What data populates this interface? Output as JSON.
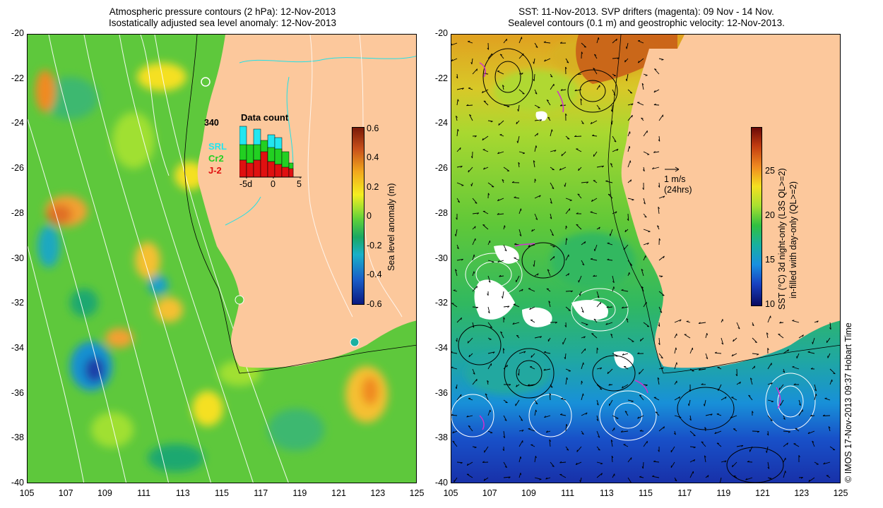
{
  "left_panel": {
    "title_line1": "Atmospheric pressure contours (2 hPa): 12-Nov-2013",
    "title_line2": "Isostatically adjusted sea level anomaly: 12-Nov-2013",
    "colorbar": {
      "label": "Sea level anomaly (m)",
      "ticks": [
        "0.6",
        "0.4",
        "0.2",
        "0",
        "-0.2",
        "-0.4",
        "-0.6"
      ],
      "colors": [
        "#7a1a08",
        "#c8501a",
        "#f2a81c",
        "#f5ee20",
        "#5ed03a",
        "#1aa862",
        "#1ab0c8",
        "#1a5ec8",
        "#0a1a80"
      ]
    },
    "data_count": {
      "title": "Data count",
      "max_label": "340",
      "legend": [
        {
          "label": "SRL",
          "color": "#22e6f0"
        },
        {
          "label": "Cr2",
          "color": "#22d022"
        },
        {
          "label": "J-2",
          "color": "#e01010"
        }
      ],
      "x_ticks": [
        "-5d",
        "0",
        "5"
      ]
    }
  },
  "right_panel": {
    "title_line1": "SST: 11-Nov-2013. SVP drifters (magenta): 09 Nov - 14 Nov.",
    "title_line2": "Sealevel contours (0.1 m) and geostrophic velocity: 12-Nov-2013.",
    "velocity_scale": {
      "label": "1 m/s",
      "sublabel": "(24hrs)"
    },
    "colorbar": {
      "label_line1": "SST (°C) 3d night-only (L3S QL>=2)",
      "label_line2": "in-filled with day-only (QL>=2)",
      "ticks": [
        "25",
        "20",
        "15",
        "10"
      ],
      "colors": [
        "#6a0a08",
        "#c03a10",
        "#f08a20",
        "#f5e020",
        "#a8e030",
        "#30c040",
        "#18b0a0",
        "#1890e0",
        "#1840c0",
        "#0a0a60"
      ]
    }
  },
  "axes": {
    "lat_ticks": [
      "-20",
      "-22",
      "-24",
      "-26",
      "-28",
      "-30",
      "-32",
      "-34",
      "-36",
      "-38",
      "-40"
    ],
    "lon_ticks": [
      "105",
      "107",
      "109",
      "111",
      "113",
      "115",
      "117",
      "119",
      "121",
      "123",
      "125"
    ],
    "lat_range": [
      -40,
      -20
    ],
    "lon_range": [
      105,
      125
    ]
  },
  "credit": "© IMOS 17-Nov-2013 09:37 Hobart Time",
  "colors": {
    "land": "#fcc89c",
    "ocean_green": "#5ec83c",
    "ocean_deep_blue": "#1840c0"
  }
}
